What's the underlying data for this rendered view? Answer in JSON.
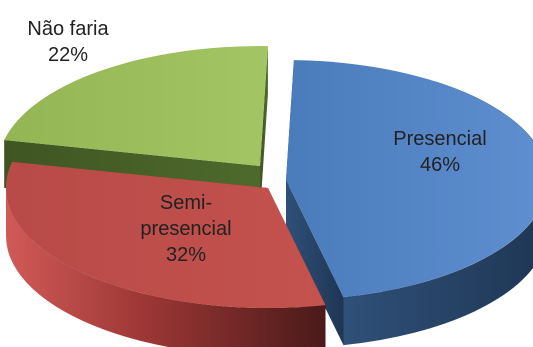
{
  "chart_data": {
    "type": "pie",
    "style": "3d-exploded",
    "categories": [
      "Presencial",
      "Semi-presencial",
      "Não faria"
    ],
    "values": [
      46,
      32,
      22
    ],
    "value_labels": [
      "46%",
      "32%",
      "22%"
    ],
    "label_lines": [
      [
        "Presencial",
        "46%"
      ],
      [
        "Semi-",
        "presencial",
        "32%"
      ],
      [
        "Não faria",
        "22%"
      ]
    ],
    "colors": [
      "#4F81BD",
      "#C0504D",
      "#9BBB59"
    ],
    "title": "",
    "legend": "none"
  }
}
